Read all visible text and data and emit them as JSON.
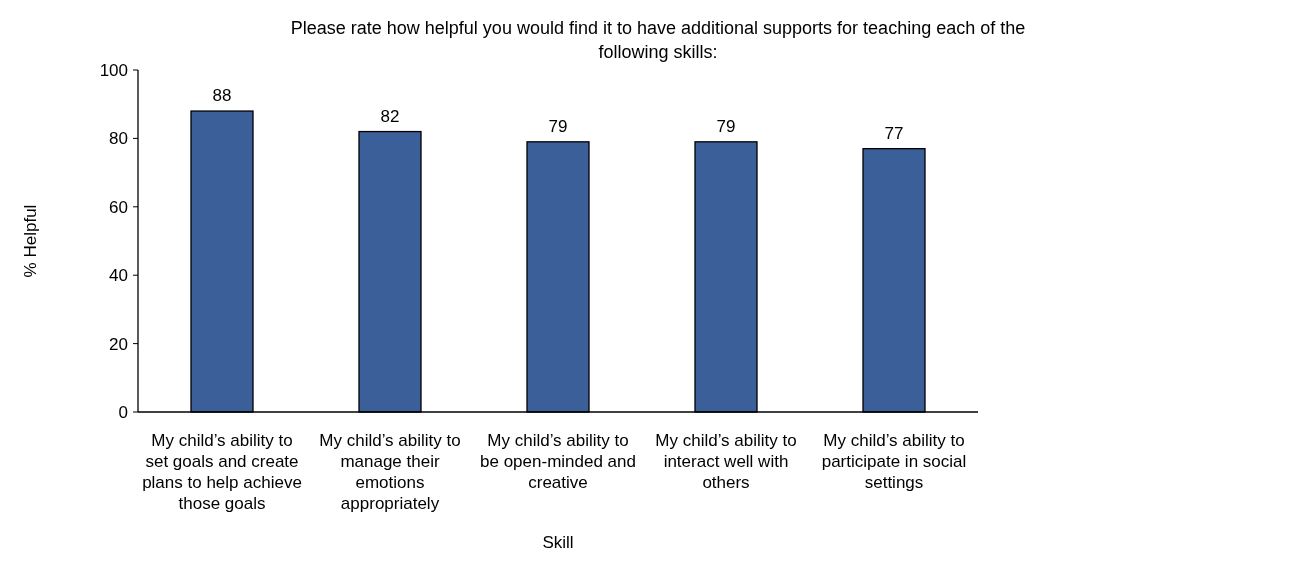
{
  "chart_data": {
    "type": "bar",
    "title": "Please rate how helpful you would find it to have additional supports for teaching each of the following skills:",
    "xlabel": "Skill",
    "ylabel": "% Helpful",
    "categories": [
      "My child’s ability to set goals and create plans to help achieve those goals",
      "My child’s ability to manage their emotions appropriately",
      "My child’s ability to be open-minded and creative",
      "My child’s ability to interact well with others",
      "My child’s ability to participate in social settings"
    ],
    "values": [
      88,
      82,
      79,
      79,
      77
    ],
    "color": "#3a5f99",
    "ylim": [
      0,
      100
    ],
    "yticks": [
      0,
      20,
      40,
      60,
      80,
      100
    ],
    "data_labels": true
  }
}
